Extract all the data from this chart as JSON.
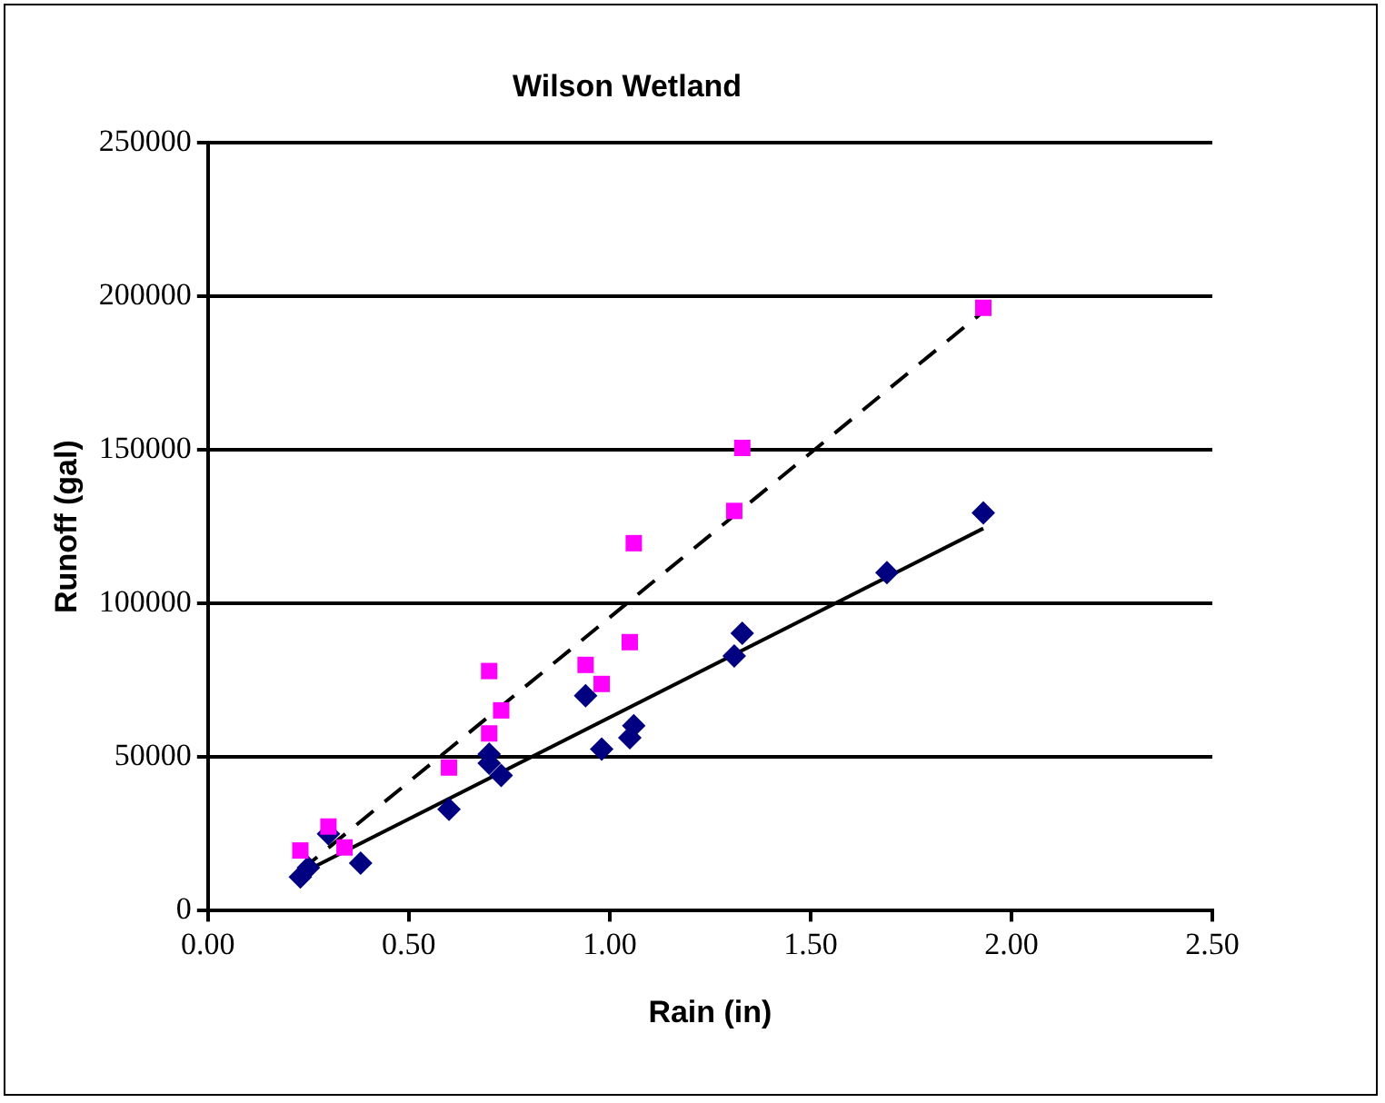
{
  "chart_data": {
    "type": "scatter",
    "title": "Wilson Wetland",
    "xlabel": "Rain (in)",
    "ylabel": "Runoff (gal)",
    "xlim": [
      0,
      2.5
    ],
    "xticks": [
      {
        "value": 0,
        "label": "0.00"
      },
      {
        "value": 0.5,
        "label": "0.50"
      },
      {
        "value": 1,
        "label": "1.00"
      },
      {
        "value": 1.5,
        "label": "1.50"
      },
      {
        "value": 2,
        "label": "2.00"
      },
      {
        "value": 2.5,
        "label": "2.50"
      }
    ],
    "ylim": [
      0,
      250000
    ],
    "yticks": [
      0,
      50000,
      100000,
      150000,
      200000,
      250000
    ],
    "grid": "y",
    "legend": false,
    "series": [
      {
        "marker": "diamond",
        "color": "#000080",
        "x": [
          0.23,
          0.25,
          0.3,
          0.38,
          0.6,
          0.7,
          0.7,
          0.73,
          0.94,
          0.98,
          1.05,
          1.06,
          1.31,
          1.33,
          1.69,
          1.93
        ],
        "values": [
          11000,
          14000,
          25000,
          15500,
          33000,
          51000,
          48000,
          44000,
          70000,
          52600,
          56300,
          60200,
          82900,
          90300,
          110000,
          129500
        ]
      },
      {
        "marker": "square",
        "color": "#ff00ff",
        "x": [
          0.23,
          0.3,
          0.34,
          0.6,
          0.7,
          0.7,
          0.73,
          0.94,
          0.98,
          1.05,
          1.06,
          1.31,
          1.33,
          1.93
        ],
        "values": [
          19600,
          27400,
          20600,
          46600,
          78000,
          57700,
          65200,
          80000,
          73800,
          87400,
          119600,
          130100,
          150600,
          196200
        ]
      },
      {
        "type": "line",
        "marker": "none",
        "line_style": "solid",
        "color": "#000000",
        "x": [
          0.23,
          1.93
        ],
        "values": [
          12000,
          124400
        ]
      },
      {
        "type": "line",
        "marker": "none",
        "line_style": "dashed",
        "color": "#000000",
        "x": [
          0.23,
          1.93
        ],
        "values": [
          13000,
          195000
        ]
      }
    ]
  }
}
